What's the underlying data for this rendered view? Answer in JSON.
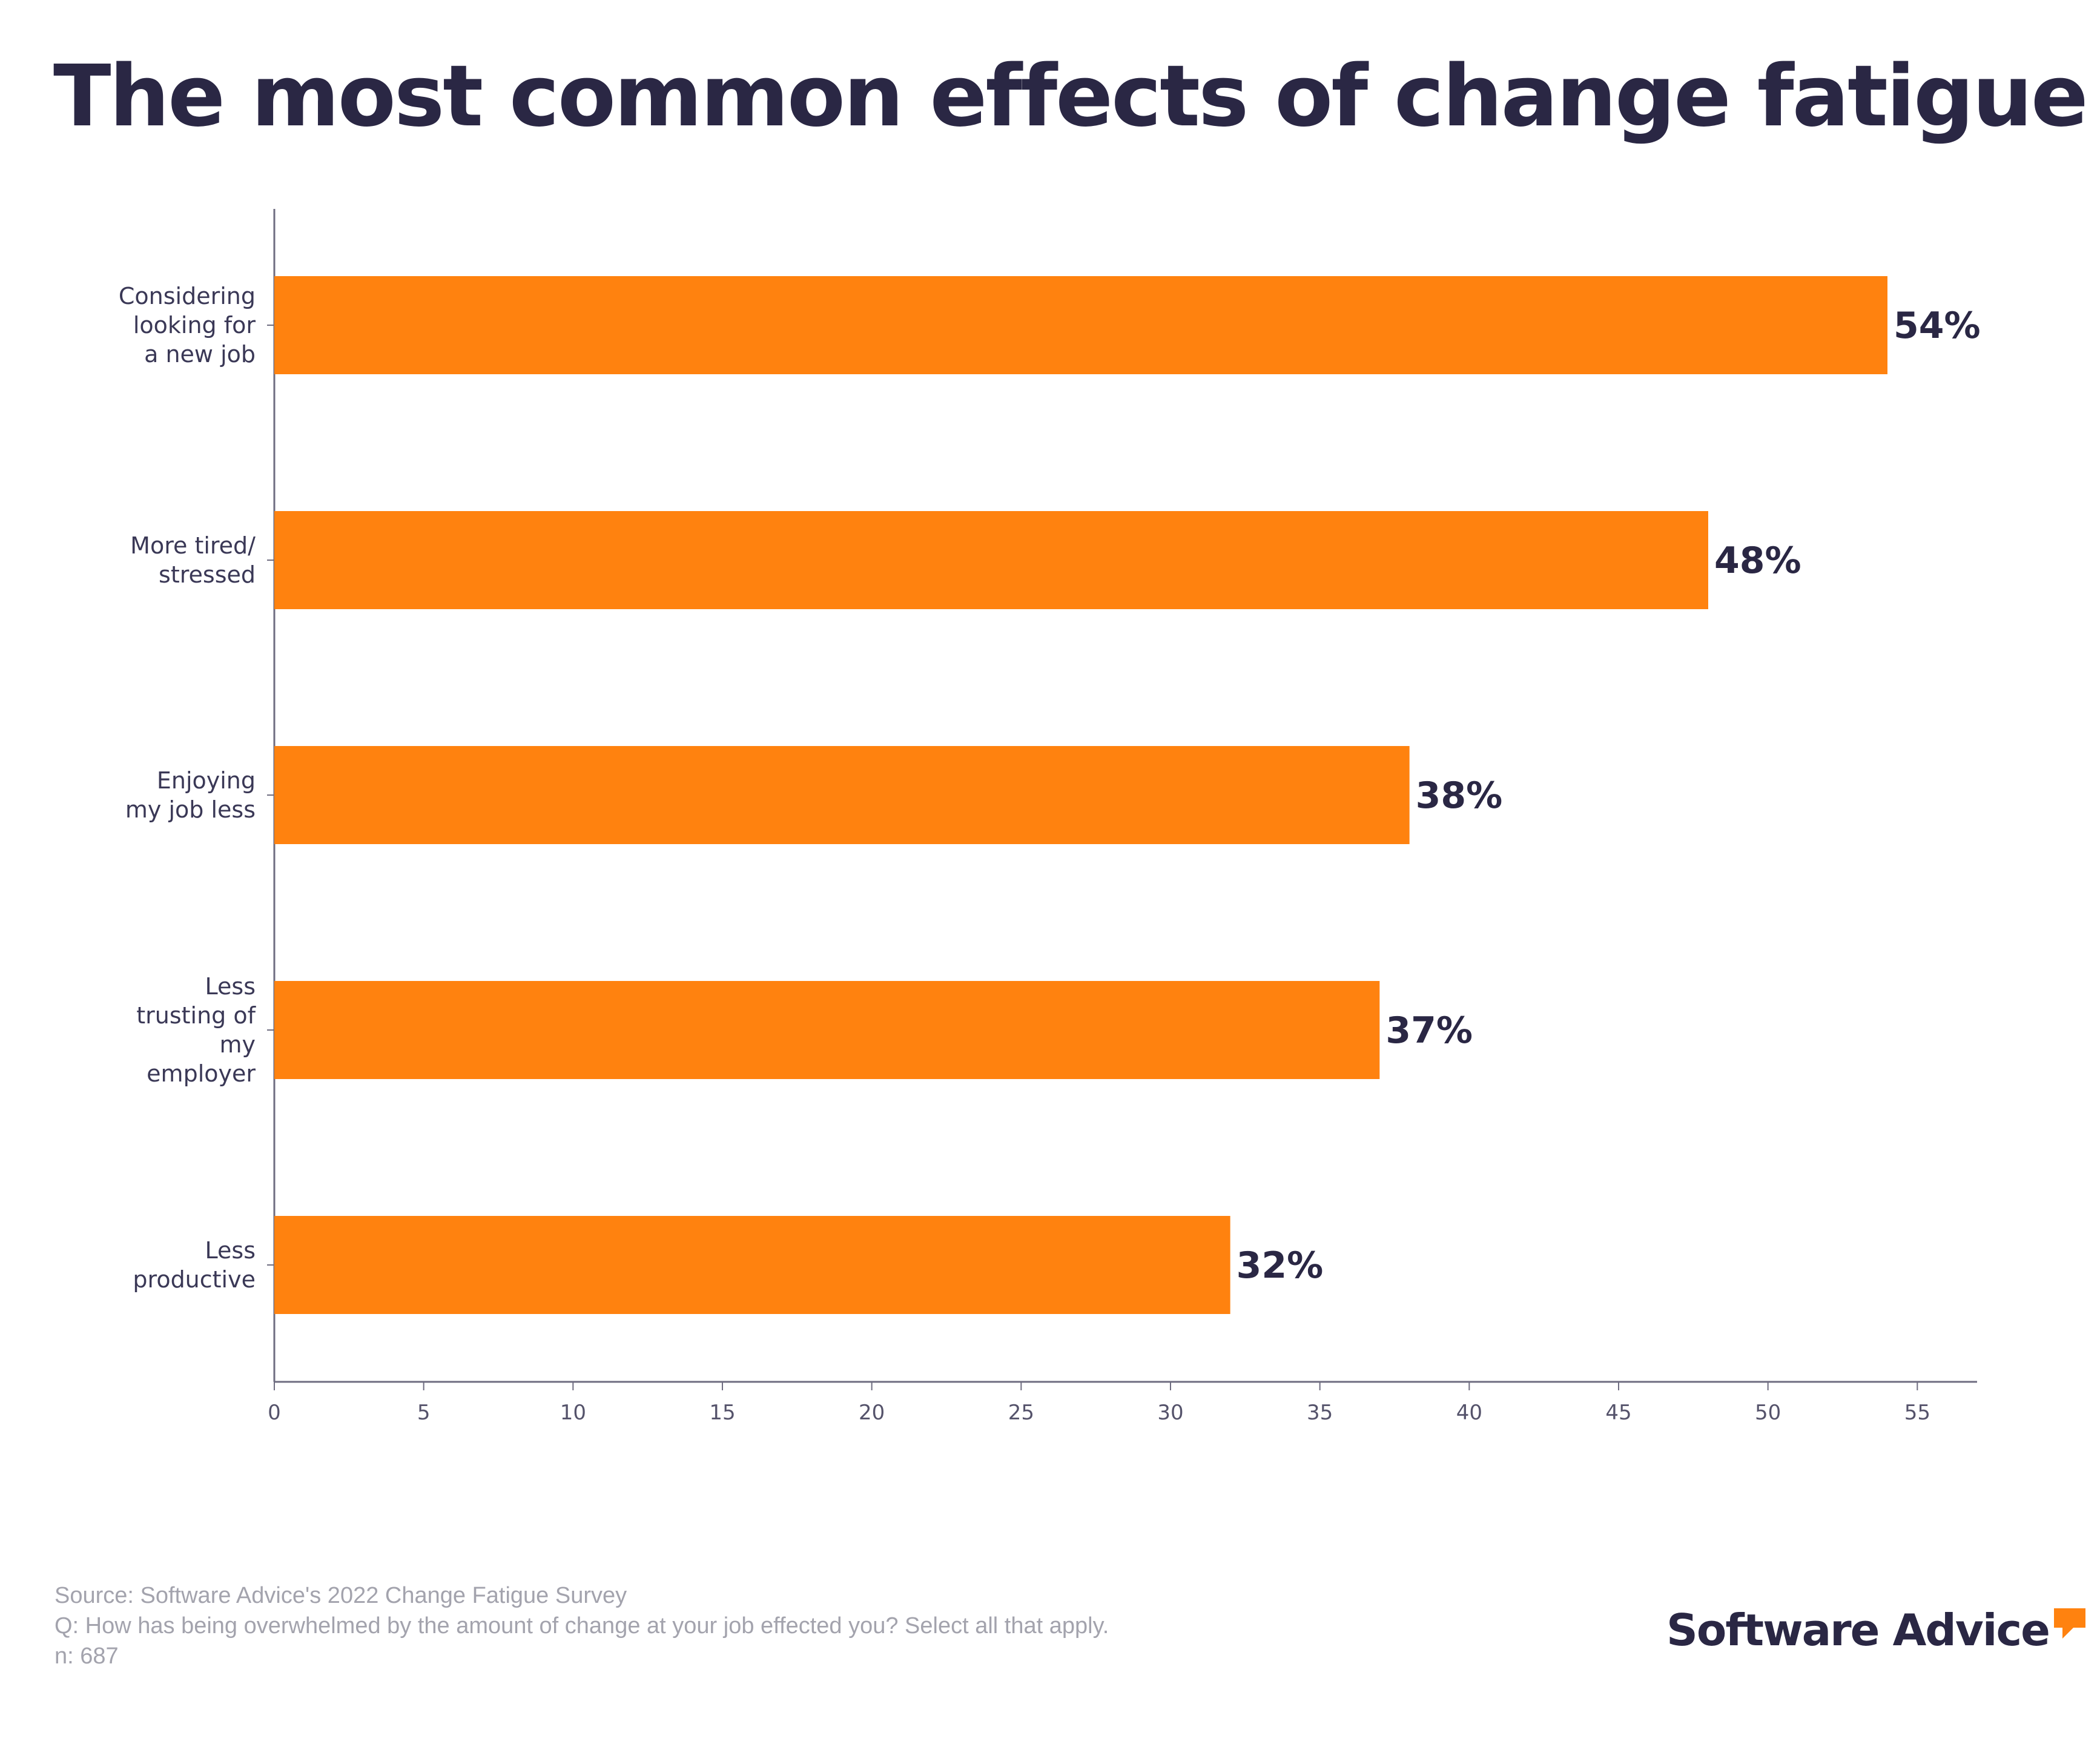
{
  "title": "The most common effects of change fatigue",
  "colors": {
    "bar": "#ff820f",
    "text": "#2a2744",
    "axis": "#6e6c80",
    "source": "#a3a3ad"
  },
  "chart_data": {
    "type": "bar",
    "orientation": "horizontal",
    "categories": [
      [
        "Considering",
        "looking for",
        "a new job"
      ],
      [
        "More tired/",
        "stressed"
      ],
      [
        "Enjoying",
        "my job less"
      ],
      [
        "Less",
        "trusting of",
        "my",
        "employer"
      ],
      [
        "Less",
        "productive"
      ]
    ],
    "values": [
      54,
      48,
      38,
      37,
      32
    ],
    "data_labels": [
      "54%",
      "48%",
      "38%",
      "37%",
      "32%"
    ],
    "x_ticks": [
      0,
      5,
      10,
      15,
      20,
      25,
      30,
      35,
      40,
      45,
      50,
      55
    ],
    "xlim": [
      0,
      57
    ],
    "title": "The most common effects of change fatigue",
    "xlabel": "",
    "ylabel": "",
    "grid": false
  },
  "source": {
    "lines": [
      "Source: Software Advice's 2022 Change Fatigue Survey",
      "Q: How has being overwhelmed by the amount of change at your job effected you? Select all that apply.",
      "n: 687"
    ]
  },
  "logo": {
    "text": "Software Advice",
    "icon": "speech-bubble-icon"
  }
}
